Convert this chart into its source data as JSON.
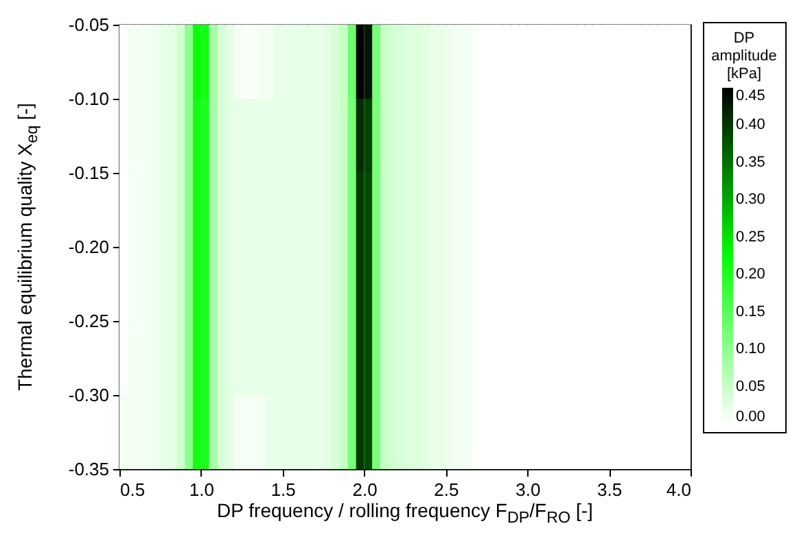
{
  "chart_data": {
    "type": "heatmap",
    "xlabel": "DP frequency / rolling frequency F$_{DP}$/F$_{RO}$ [-]",
    "ylabel": "Thermal equilibrium quality X$_{eq}$ [-]",
    "clabel": "DP amplitude [kPa]",
    "x": [
      0.525,
      0.575,
      0.625,
      0.675,
      0.725,
      0.775,
      0.825,
      0.875,
      0.925,
      0.975,
      1.025,
      1.075,
      1.125,
      1.175,
      1.225,
      1.275,
      1.325,
      1.375,
      1.425,
      1.475,
      1.525,
      1.575,
      1.625,
      1.675,
      1.725,
      1.775,
      1.825,
      1.875,
      1.925,
      1.975,
      2.025,
      2.075,
      2.125,
      2.175,
      2.225,
      2.275,
      2.325,
      2.375,
      2.425,
      2.475,
      2.525,
      2.575,
      2.625,
      2.675,
      2.725,
      2.775,
      2.825,
      2.875,
      2.925,
      2.975,
      3.025,
      3.075,
      3.125,
      3.175,
      3.225,
      3.275,
      3.325,
      3.375,
      3.425,
      3.475,
      3.525,
      3.575,
      3.625,
      3.675,
      3.725,
      3.775,
      3.825,
      3.875,
      3.925,
      3.975
    ],
    "y": [
      -0.075,
      -0.125,
      -0.175,
      -0.225,
      -0.275,
      -0.325
    ],
    "cells": [
      [
        0.005,
        0.01,
        0.01,
        0.01,
        0.015,
        0.02,
        0.025,
        0.04,
        0.1,
        0.22,
        0.21,
        0.08,
        0.035,
        0.025,
        0.01,
        0.005,
        0.005,
        0.01,
        0.01,
        0.02,
        0.02,
        0.02,
        0.02,
        0.02,
        0.02,
        0.025,
        0.035,
        0.05,
        0.13,
        0.45,
        0.43,
        0.12,
        0.05,
        0.04,
        0.035,
        0.03,
        0.03,
        0.025,
        0.02,
        0.02,
        0.015,
        0.01,
        0.01,
        0.005,
        0,
        0,
        0,
        0,
        0,
        0,
        0,
        0,
        0,
        0,
        0,
        0,
        0,
        0,
        0,
        0,
        0,
        0,
        0,
        0,
        0,
        0,
        0,
        0,
        0,
        0
      ],
      [
        0.005,
        0.01,
        0.01,
        0.01,
        0.015,
        0.02,
        0.025,
        0.04,
        0.1,
        0.21,
        0.2,
        0.08,
        0.035,
        0.025,
        0.02,
        0.02,
        0.02,
        0.02,
        0.02,
        0.02,
        0.02,
        0.02,
        0.02,
        0.02,
        0.02,
        0.025,
        0.035,
        0.05,
        0.12,
        0.41,
        0.39,
        0.12,
        0.05,
        0.04,
        0.035,
        0.03,
        0.03,
        0.025,
        0.02,
        0.02,
        0.015,
        0.01,
        0.01,
        0.005,
        0,
        0,
        0,
        0,
        0,
        0,
        0,
        0,
        0,
        0,
        0,
        0,
        0,
        0,
        0,
        0,
        0,
        0,
        0,
        0,
        0,
        0,
        0,
        0,
        0,
        0
      ],
      [
        0,
        0.005,
        0.01,
        0.01,
        0.015,
        0.02,
        0.025,
        0.04,
        0.1,
        0.21,
        0.2,
        0.08,
        0.035,
        0.025,
        0.02,
        0.02,
        0.02,
        0.02,
        0.02,
        0.02,
        0.02,
        0.02,
        0.02,
        0.02,
        0.02,
        0.025,
        0.035,
        0.05,
        0.12,
        0.4,
        0.38,
        0.12,
        0.05,
        0.04,
        0.035,
        0.03,
        0.03,
        0.025,
        0.02,
        0.02,
        0.015,
        0.01,
        0.01,
        0.005,
        0,
        0,
        0,
        0,
        0,
        0,
        0,
        0,
        0,
        0,
        0,
        0,
        0,
        0,
        0,
        0,
        0,
        0,
        0,
        0,
        0,
        0,
        0,
        0,
        0,
        0
      ],
      [
        0,
        0.005,
        0.01,
        0.01,
        0.015,
        0.02,
        0.025,
        0.04,
        0.1,
        0.21,
        0.2,
        0.08,
        0.035,
        0.025,
        0.02,
        0.02,
        0.02,
        0.02,
        0.02,
        0.02,
        0.02,
        0.02,
        0.02,
        0.02,
        0.02,
        0.025,
        0.035,
        0.05,
        0.12,
        0.4,
        0.38,
        0.12,
        0.05,
        0.04,
        0.035,
        0.03,
        0.03,
        0.025,
        0.02,
        0.02,
        0.015,
        0.01,
        0.01,
        0.005,
        0,
        0,
        0,
        0,
        0,
        0,
        0,
        0,
        0,
        0,
        0,
        0,
        0,
        0,
        0,
        0,
        0,
        0,
        0,
        0,
        0,
        0,
        0,
        0,
        0,
        0
      ],
      [
        0.005,
        0.01,
        0.01,
        0.01,
        0.015,
        0.02,
        0.025,
        0.04,
        0.1,
        0.21,
        0.2,
        0.08,
        0.035,
        0.025,
        0.02,
        0.02,
        0.02,
        0.02,
        0.02,
        0.02,
        0.02,
        0.02,
        0.02,
        0.02,
        0.02,
        0.025,
        0.035,
        0.05,
        0.12,
        0.4,
        0.38,
        0.12,
        0.05,
        0.04,
        0.035,
        0.03,
        0.03,
        0.025,
        0.02,
        0.02,
        0.015,
        0.01,
        0.01,
        0.005,
        0,
        0,
        0,
        0,
        0,
        0,
        0,
        0,
        0,
        0,
        0,
        0,
        0,
        0,
        0,
        0,
        0,
        0,
        0,
        0,
        0,
        0,
        0,
        0,
        0,
        0
      ],
      [
        0.01,
        0.01,
        0.01,
        0.01,
        0.015,
        0.02,
        0.025,
        0.04,
        0.1,
        0.21,
        0.2,
        0.08,
        0.035,
        0.025,
        0.01,
        0.01,
        0.01,
        0.01,
        0.02,
        0.02,
        0.02,
        0.02,
        0.02,
        0.02,
        0.02,
        0.025,
        0.035,
        0.05,
        0.12,
        0.4,
        0.38,
        0.12,
        0.05,
        0.04,
        0.035,
        0.03,
        0.03,
        0.025,
        0.02,
        0.02,
        0.015,
        0.01,
        0.01,
        0.005,
        0,
        0,
        0,
        0,
        0,
        0,
        0,
        0,
        0,
        0,
        0,
        0,
        0,
        0,
        0,
        0,
        0,
        0,
        0,
        0,
        0,
        0,
        0,
        0,
        0,
        0
      ]
    ],
    "colors": [
      "#ffffff",
      "#00ff00",
      "#000000"
    ],
    "clim": [
      0,
      0.45
    ],
    "cticks": [
      {
        "value": 0,
        "label": "0.00"
      },
      {
        "value": 0.05,
        "label": "0.05"
      },
      {
        "value": 0.1,
        "label": "0.10"
      },
      {
        "value": 0.15,
        "label": "0.15"
      },
      {
        "value": 0.2,
        "label": "0.20"
      },
      {
        "value": 0.25,
        "label": "0.25"
      },
      {
        "value": 0.3,
        "label": "0.30"
      },
      {
        "value": 0.35,
        "label": "0.35"
      },
      {
        "value": 0.4,
        "label": "0.40"
      },
      {
        "value": 0.45,
        "label": "0.45"
      }
    ],
    "xlim": [
      0.5,
      4.0
    ],
    "xticks": [
      {
        "value": 0.5,
        "label": "0.5"
      },
      {
        "value": 1,
        "label": "1.0"
      },
      {
        "value": 1.5,
        "label": "1.5"
      },
      {
        "value": 2,
        "label": "2.0"
      },
      {
        "value": 2.5,
        "label": "2.5"
      },
      {
        "value": 3,
        "label": "3.0"
      },
      {
        "value": 3.5,
        "label": "3.5"
      },
      {
        "value": 4,
        "label": "4.0"
      }
    ],
    "ylim": [
      -0.35,
      -0.05
    ],
    "yticks": [
      {
        "value": -0.35,
        "label": "-0.35"
      },
      {
        "value": -0.3,
        "label": "-0.30"
      },
      {
        "value": -0.25,
        "label": "-0.25"
      },
      {
        "value": -0.2,
        "label": "-0.20"
      },
      {
        "value": -0.15,
        "label": "-0.15"
      },
      {
        "value": -0.1,
        "label": "-0.10"
      },
      {
        "value": -0.05,
        "label": "-0.05"
      }
    ],
    "grid": false
  }
}
